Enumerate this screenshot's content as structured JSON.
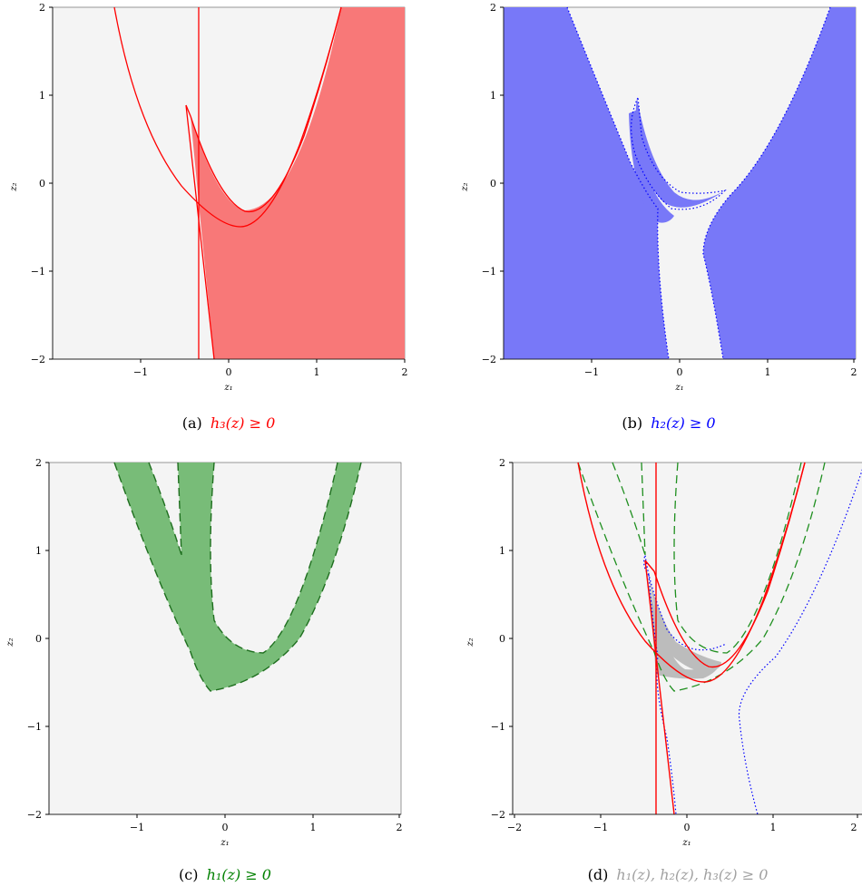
{
  "panels": [
    {
      "id": "a",
      "caption_tag": "(a)",
      "caption_math": "h₃(z) ≥ 0",
      "caption_color": "#ff0000",
      "x_label": "z₁",
      "y_label": "z₂",
      "x_ticks": [
        "−1",
        "0",
        "1",
        "2"
      ],
      "y_ticks": [
        "2",
        "1",
        "0",
        "−1",
        "−2"
      ],
      "region_fill": "#f87878",
      "curve_color": "#ff0000",
      "curve_style": "solid"
    },
    {
      "id": "b",
      "caption_tag": "(b)",
      "caption_math": "h₂(z) ≥ 0",
      "caption_color": "#0000ff",
      "x_label": "z₁",
      "y_label": "z₂",
      "x_ticks": [
        "−1",
        "0",
        "1",
        "2"
      ],
      "y_ticks": [
        "2",
        "1",
        "0",
        "−1",
        "−2"
      ],
      "region_fill": "#7878f8",
      "curve_color": "#0000ff",
      "curve_style": "dotted"
    },
    {
      "id": "c",
      "caption_tag": "(c)",
      "caption_math": "h₁(z) ≥ 0",
      "caption_color": "#008000",
      "x_label": "z₁",
      "y_label": "z₂",
      "x_ticks": [
        "−1",
        "0",
        "1",
        "2"
      ],
      "y_ticks": [
        "2",
        "1",
        "0",
        "−1",
        "−2"
      ],
      "region_fill": "#78bc78",
      "curve_color": "#1f6f1f",
      "curve_style": "dashed"
    },
    {
      "id": "d",
      "caption_tag": "(d)",
      "caption_math": "h₁(z), h₂(z), h₃(z) ≥ 0",
      "caption_color": "#a0a0a0",
      "x_label": "z₁",
      "y_label": "z₂",
      "x_ticks": [
        "−2",
        "−1",
        "0",
        "1",
        "2"
      ],
      "y_ticks": [
        "2",
        "1",
        "0",
        "−1",
        "−2"
      ],
      "region_fill": "#bcbcbc",
      "curve_color": "#ff0000",
      "curve_style": "solid"
    }
  ],
  "colors": {
    "plot_background": "#f4f4f4",
    "h3": "#ff0000",
    "h2": "#0000ff",
    "h1": "#1f8f1f",
    "feasible": "#bcbcbc"
  }
}
